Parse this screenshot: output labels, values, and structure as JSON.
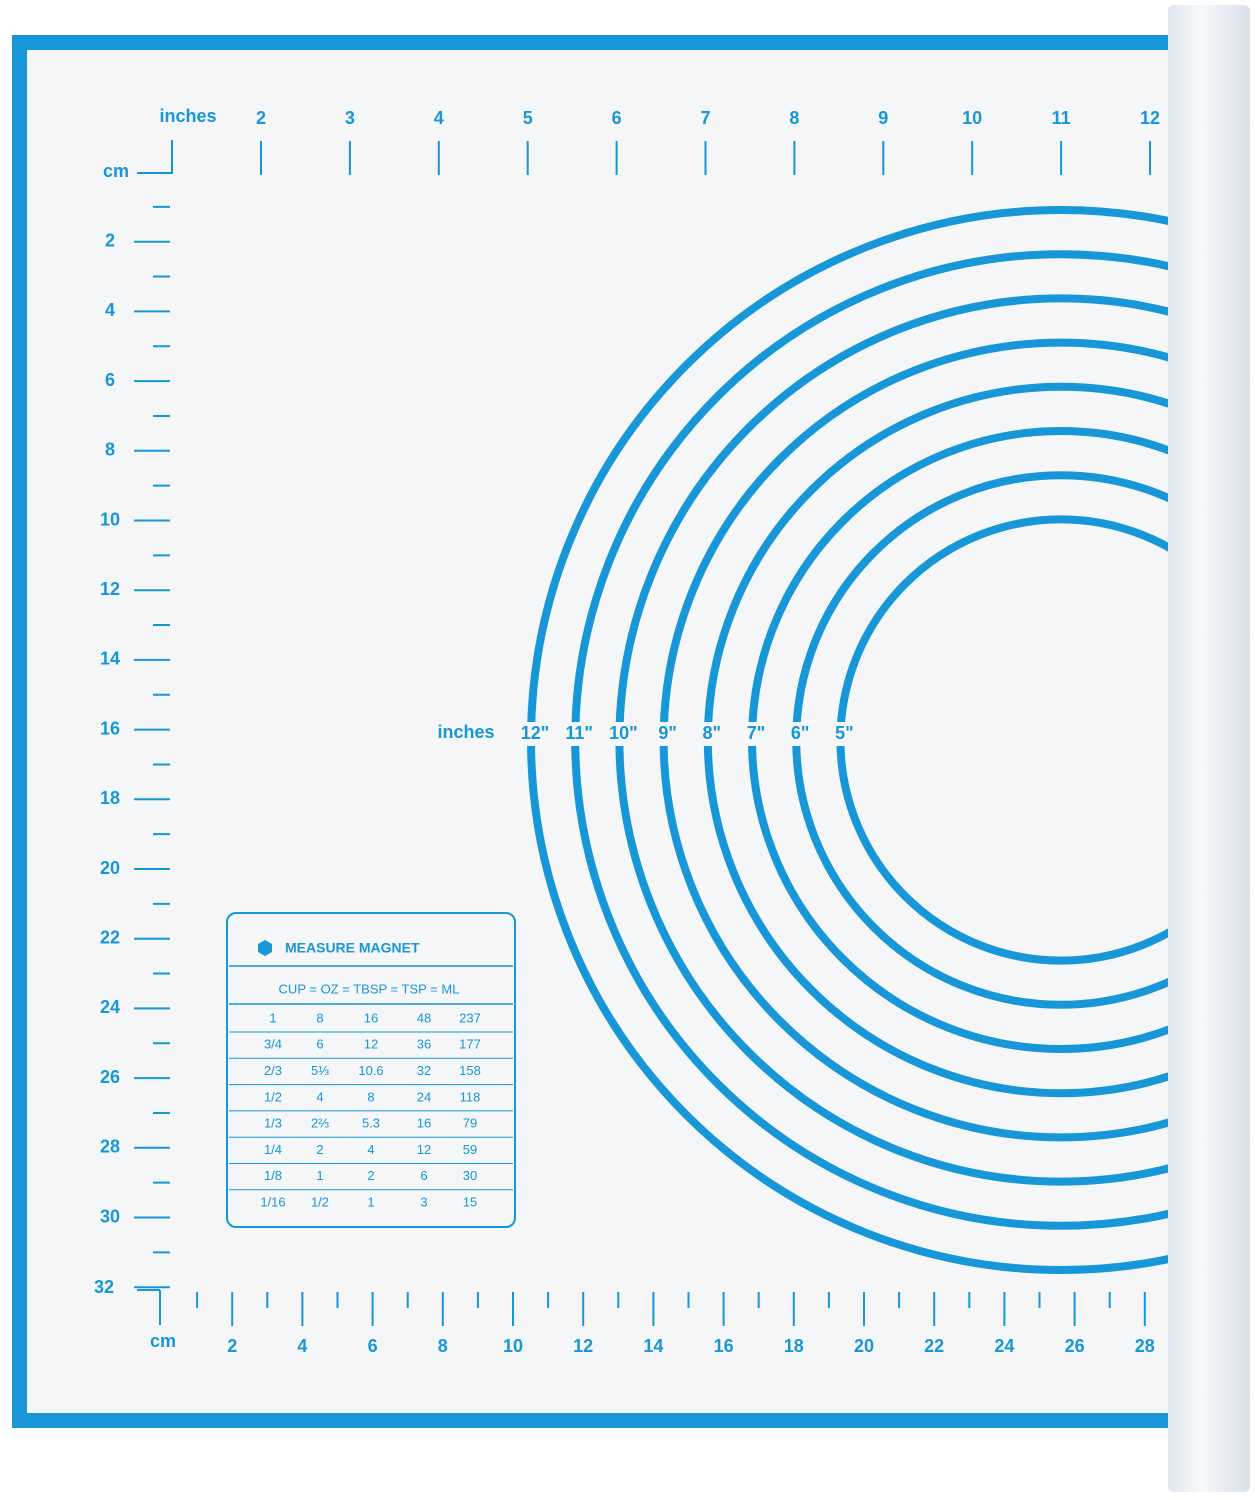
{
  "top_ruler": {
    "unit": "inches",
    "labels": [
      "2",
      "3",
      "4",
      "5",
      "6",
      "7",
      "8",
      "9",
      "10",
      "11",
      "12"
    ]
  },
  "left_ruler": {
    "unit": "cm",
    "labels": [
      "2",
      "4",
      "6",
      "8",
      "10",
      "12",
      "14",
      "16",
      "18",
      "20",
      "22",
      "24",
      "26",
      "28",
      "30",
      "32"
    ]
  },
  "bottom_ruler": {
    "unit": "cm",
    "labels": [
      "2",
      "4",
      "6",
      "8",
      "10",
      "12",
      "14",
      "16",
      "18",
      "20",
      "22",
      "24",
      "26",
      "28"
    ]
  },
  "circles": {
    "unit": "inches",
    "labels": [
      "12\"",
      "11\"",
      "10\"",
      "9\"",
      "8\"",
      "7\"",
      "6\"",
      "5\""
    ]
  },
  "table": {
    "title": "MEASURE MAGNET",
    "header": "CUP  =  OZ  =  TBSP  =  TSP  =  ML",
    "rows": [
      [
        "1",
        "8",
        "16",
        "48",
        "237"
      ],
      [
        "3/4",
        "6",
        "12",
        "36",
        "177"
      ],
      [
        "2/3",
        "5⅓",
        "10.6",
        "32",
        "158"
      ],
      [
        "1/2",
        "4",
        "8",
        "24",
        "118"
      ],
      [
        "1/3",
        "2⅔",
        "5.3",
        "16",
        "79"
      ],
      [
        "1/4",
        "2",
        "4",
        "12",
        "59"
      ],
      [
        "1/8",
        "1",
        "2",
        "6",
        "30"
      ],
      [
        "1/16",
        "1/2",
        "1",
        "3",
        "15"
      ]
    ]
  }
}
